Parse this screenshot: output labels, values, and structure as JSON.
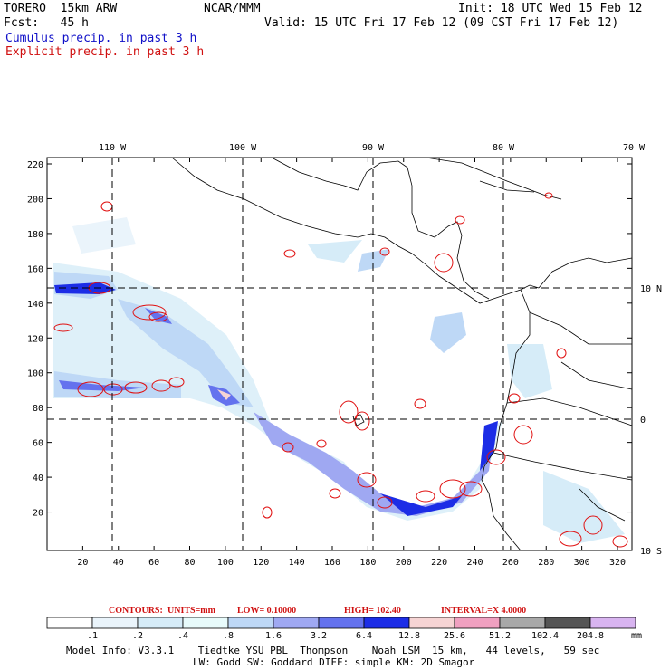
{
  "header": {
    "model": "TORERO  15km ARW",
    "org": "NCAR/MMM",
    "init": "Init: 18 UTC Wed 15 Feb 12",
    "fcst": "Fcst:   45 h",
    "valid": "Valid: 15 UTC Fri 17 Feb 12 (09 CST Fri 17 Feb 12)",
    "line_blue": "Cumulus precip. in past 3 h",
    "line_red": "Explicit precip. in past 3 h"
  },
  "axes": {
    "top_labels": [
      "110 W",
      "100 W",
      "90 W",
      "80 W",
      "70 W"
    ],
    "right_labels": [
      "10 N",
      "0",
      "10 S"
    ],
    "left_ticks": [
      20,
      40,
      60,
      80,
      100,
      120,
      140,
      160,
      180,
      200,
      220
    ],
    "bottom_ticks": [
      20,
      40,
      60,
      80,
      100,
      120,
      140,
      160,
      180,
      200,
      220,
      240,
      260,
      280,
      300,
      320
    ]
  },
  "contour_info": {
    "contours": "CONTOURS:",
    "units": "UNITS=mm",
    "low": "LOW= 0.10000",
    "high": "HIGH=  102.40",
    "interval": "INTERVAL=X  4.0000"
  },
  "colorbar": {
    "labels": [
      ".1",
      ".2",
      ".4",
      ".8",
      "1.6",
      "3.2",
      "6.4",
      "12.8",
      "25.6",
      "51.2",
      "102.4",
      "204.8"
    ],
    "unit": "mm",
    "colors": [
      "#ffffff",
      "#eaf4fb",
      "#d6ecf8",
      "#e8fbfb",
      "#bed8f6",
      "#9fa8f2",
      "#6472ee",
      "#1c2de6",
      "#f6d4d4",
      "#f0a0c0",
      "#a8a8a8",
      "#555555",
      "#d8b4f0"
    ]
  },
  "footer": {
    "line1": "Model Info: V3.3.1    Tiedtke YSU PBL  Thompson    Noah LSM  15 km,   44 levels,   59 sec",
    "line2": "LW: Godd SW: Goddard DIFF: simple KM: 2D Smagor"
  }
}
